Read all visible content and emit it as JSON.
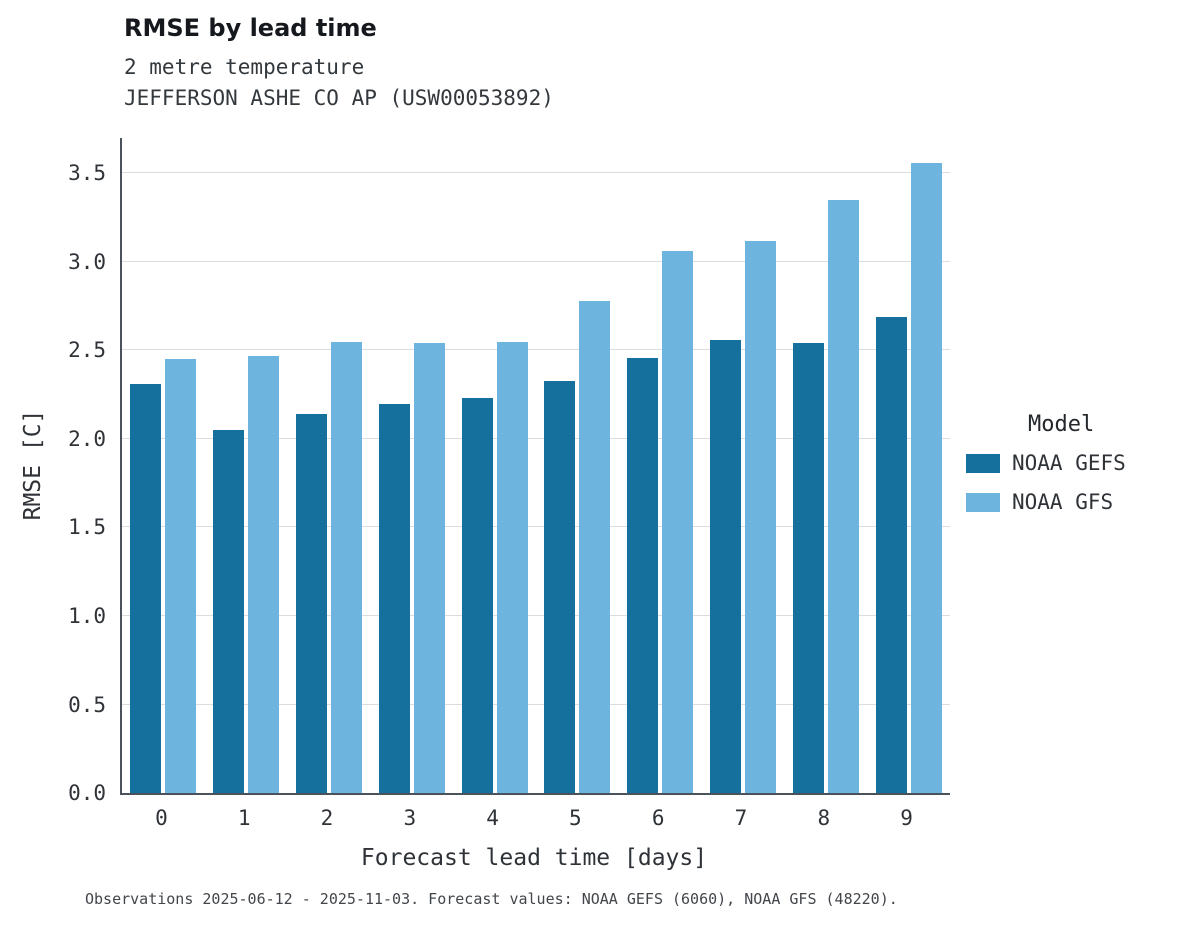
{
  "title": "RMSE by lead time",
  "subtitle_line1": "2 metre temperature",
  "subtitle_line2": "JEFFERSON ASHE CO AP (USW00053892)",
  "footer": "Observations 2025-06-12 - 2025-11-03. Forecast values: NOAA GEFS (6060), NOAA GFS (48220).",
  "legend": {
    "title": "Model"
  },
  "chart_data": {
    "type": "bar",
    "title": "RMSE by lead time",
    "subtitle": [
      "2 metre temperature",
      "JEFFERSON ASHE CO AP (USW00053892)"
    ],
    "xlabel": "Forecast lead time [days]",
    "ylabel": "RMSE [C]",
    "categories": [
      0,
      1,
      2,
      3,
      4,
      5,
      6,
      7,
      8,
      9
    ],
    "series": [
      {
        "name": "NOAA GEFS",
        "color": "#15709e",
        "values": [
          2.31,
          2.05,
          2.14,
          2.2,
          2.23,
          2.33,
          2.46,
          2.56,
          2.54,
          2.69
        ]
      },
      {
        "name": "NOAA GFS",
        "color": "#6db4de",
        "values": [
          2.45,
          2.47,
          2.55,
          2.54,
          2.55,
          2.78,
          3.06,
          3.12,
          3.35,
          3.56
        ]
      }
    ],
    "ylim": [
      0,
      3.7
    ],
    "yticks": [
      0.0,
      0.5,
      1.0,
      1.5,
      2.0,
      2.5,
      3.0,
      3.5
    ],
    "grid": true,
    "legend_position": "right"
  }
}
